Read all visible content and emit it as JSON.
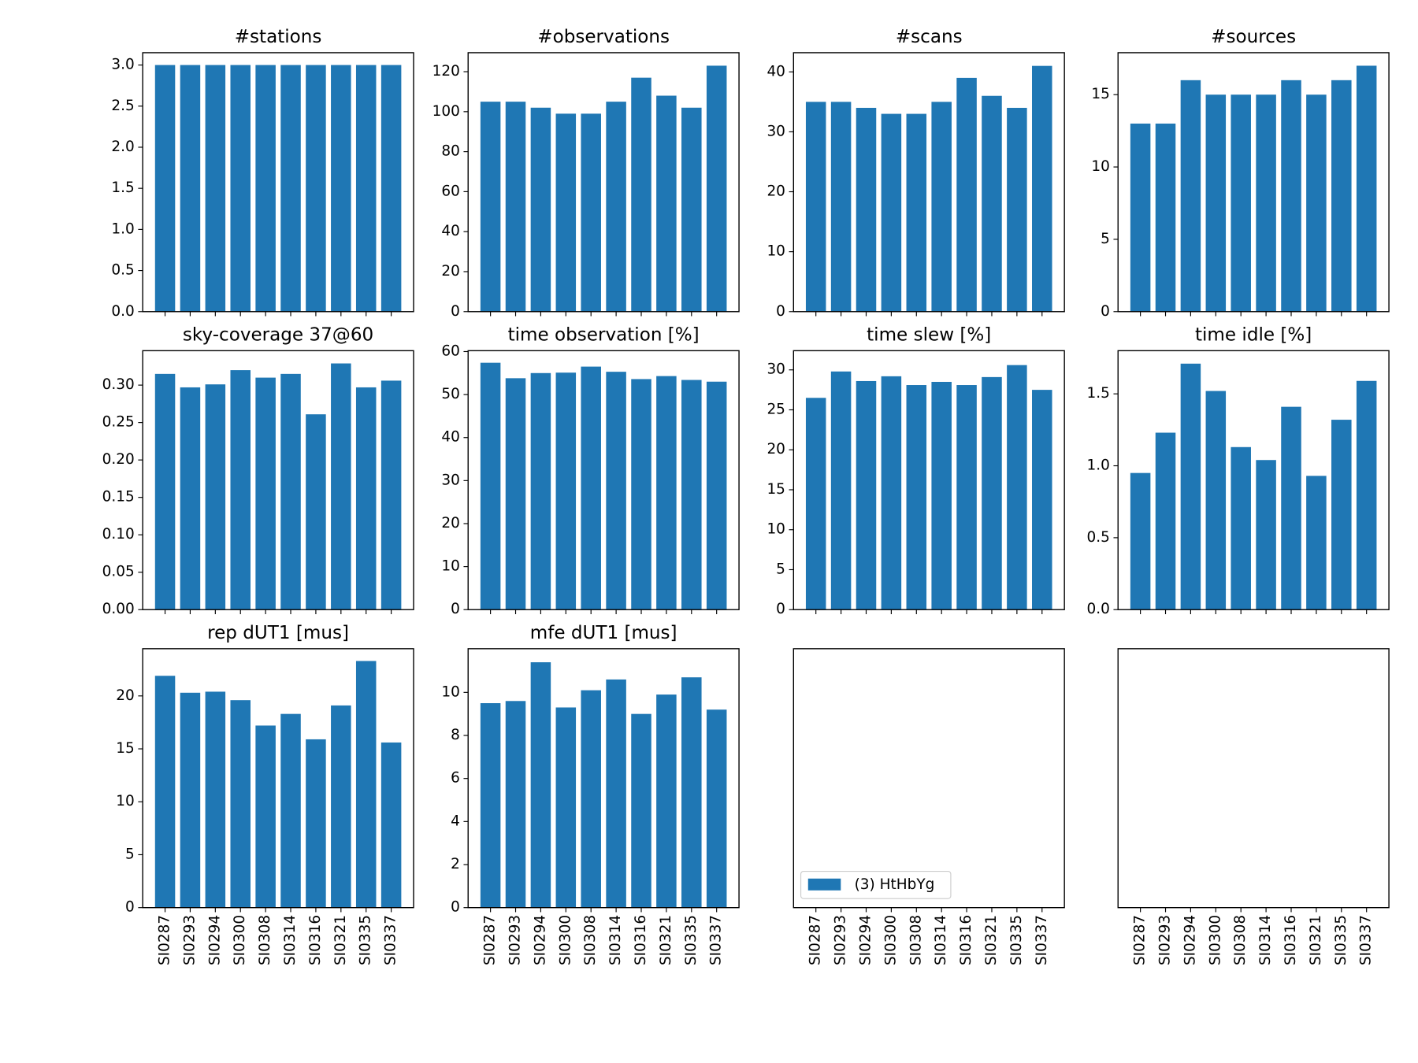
{
  "chart_data": [
    {
      "type": "bar",
      "title": "#stations",
      "color": "#1f77b4",
      "values": [
        3,
        3,
        3,
        3,
        3,
        3,
        3,
        3,
        3,
        3
      ],
      "ylim": [
        0,
        3.15
      ],
      "yticks": [
        {
          "value": 0,
          "label": "0.0"
        },
        {
          "value": 0.5,
          "label": "0.5"
        },
        {
          "value": 1,
          "label": "1.0"
        },
        {
          "value": 1.5,
          "label": "1.5"
        },
        {
          "value": 2,
          "label": "2.0"
        },
        {
          "value": 2.5,
          "label": "2.5"
        },
        {
          "value": 3,
          "label": "3.0"
        }
      ]
    },
    {
      "type": "bar",
      "title": "#observations",
      "color": "#1f77b4",
      "values": [
        105,
        105,
        102,
        99,
        99,
        105,
        117,
        108,
        102,
        123
      ],
      "ylim": [
        0,
        129.5
      ],
      "yticks": [
        0,
        20,
        40,
        60,
        80,
        100,
        120
      ]
    },
    {
      "type": "bar",
      "title": "#scans",
      "color": "#1f77b4",
      "values": [
        35,
        35,
        34,
        33,
        33,
        35,
        39,
        36,
        34,
        41
      ],
      "ylim": [
        0,
        43.2
      ],
      "yticks": [
        0,
        10,
        20,
        30,
        40
      ]
    },
    {
      "type": "bar",
      "title": "#sources",
      "color": "#1f77b4",
      "values": [
        13,
        13,
        16,
        15,
        15,
        15,
        16,
        15,
        16,
        17
      ],
      "ylim": [
        0,
        17.9
      ],
      "yticks": [
        0,
        5,
        10,
        15
      ]
    },
    {
      "type": "bar",
      "title": "sky-coverage 37@60",
      "color": "#1f77b4",
      "values": [
        0.315,
        0.297,
        0.301,
        0.32,
        0.31,
        0.315,
        0.261,
        0.329,
        0.297,
        0.306
      ],
      "ylim": [
        0,
        0.346
      ],
      "yticks": [
        {
          "value": 0,
          "label": "0.00"
        },
        {
          "value": 0.05,
          "label": "0.05"
        },
        {
          "value": 0.1,
          "label": "0.10"
        },
        {
          "value": 0.15,
          "label": "0.15"
        },
        {
          "value": 0.2,
          "label": "0.20"
        },
        {
          "value": 0.25,
          "label": "0.25"
        },
        {
          "value": 0.3,
          "label": "0.30"
        }
      ]
    },
    {
      "type": "bar",
      "title": "time observation [%]",
      "color": "#1f77b4",
      "values": [
        57.4,
        53.8,
        55.0,
        55.1,
        56.5,
        55.3,
        53.6,
        54.3,
        53.4,
        53.0
      ],
      "ylim": [
        0,
        60.2
      ],
      "yticks": [
        0,
        10,
        20,
        30,
        40,
        50,
        60
      ]
    },
    {
      "type": "bar",
      "title": "time slew [%]",
      "color": "#1f77b4",
      "values": [
        26.5,
        29.8,
        28.6,
        29.2,
        28.1,
        28.5,
        28.1,
        29.1,
        30.6,
        27.5
      ],
      "ylim": [
        0,
        32.4
      ],
      "yticks": [
        0,
        5,
        10,
        15,
        20,
        25,
        30
      ]
    },
    {
      "type": "bar",
      "title": "time idle [%]",
      "color": "#1f77b4",
      "values": [
        0.95,
        1.23,
        1.71,
        1.52,
        1.13,
        1.04,
        1.41,
        0.93,
        1.32,
        1.59
      ],
      "ylim": [
        0,
        1.8
      ],
      "yticks": [
        {
          "value": 0,
          "label": "0.0"
        },
        {
          "value": 0.5,
          "label": "0.5"
        },
        {
          "value": 1,
          "label": "1.0"
        },
        {
          "value": 1.5,
          "label": "1.5"
        }
      ]
    },
    {
      "type": "bar",
      "title": "rep dUT1 [mus]",
      "color": "#1f77b4",
      "categories": [
        "SI0287",
        "SI0293",
        "SI0294",
        "SI0300",
        "SI0308",
        "SI0314",
        "SI0316",
        "SI0321",
        "SI0335",
        "SI0337"
      ],
      "values": [
        21.9,
        20.3,
        20.4,
        19.6,
        17.2,
        18.3,
        15.9,
        19.1,
        23.3,
        15.6
      ],
      "ylim": [
        0,
        24.46
      ],
      "yticks": [
        0,
        5,
        10,
        15,
        20
      ]
    },
    {
      "type": "bar",
      "title": "mfe dUT1 [mus]",
      "color": "#1f77b4",
      "categories": [
        "SI0287",
        "SI0293",
        "SI0294",
        "SI0300",
        "SI0308",
        "SI0314",
        "SI0316",
        "SI0321",
        "SI0335",
        "SI0337"
      ],
      "values": [
        9.5,
        9.6,
        11.4,
        9.3,
        10.1,
        10.6,
        9.0,
        9.9,
        10.7,
        9.2
      ],
      "ylim": [
        0,
        12.03
      ],
      "yticks": [
        0,
        2,
        4,
        6,
        8,
        10
      ]
    },
    {
      "type": "bar",
      "categories": [
        "SI0287",
        "SI0293",
        "SI0294",
        "SI0300",
        "SI0308",
        "SI0314",
        "SI0316",
        "SI0321",
        "SI0335",
        "SI0337"
      ],
      "legend": {
        "label": "(3) HtHbYg",
        "color": "#1f77b4",
        "loc": "lower left"
      }
    },
    {
      "type": "bar",
      "categories": [
        "SI0287",
        "SI0293",
        "SI0294",
        "SI0300",
        "SI0308",
        "SI0314",
        "SI0316",
        "SI0321",
        "SI0335",
        "SI0337"
      ]
    }
  ]
}
